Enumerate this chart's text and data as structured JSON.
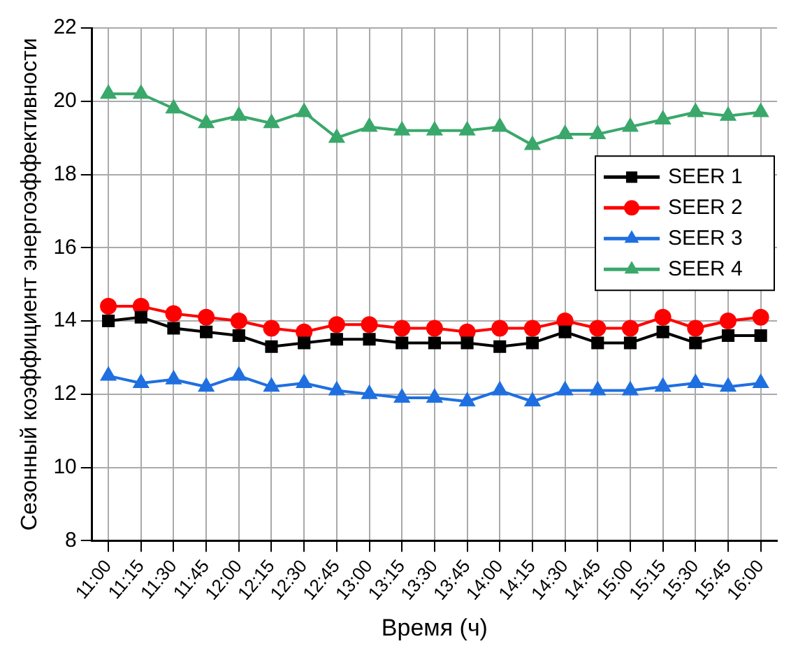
{
  "chart_data": {
    "type": "line",
    "xlabel": "Время (ч)",
    "ylabel": "Сезонный коэффициент энергоэффективности",
    "categories": [
      "11:00",
      "11:15",
      "11:30",
      "11:45",
      "12:00",
      "12:15",
      "12:30",
      "12:45",
      "13:00",
      "13:15",
      "13:30",
      "13:45",
      "14:00",
      "14:15",
      "14:30",
      "14:45",
      "15:00",
      "15:15",
      "15:30",
      "15:45",
      "16:00"
    ],
    "series": [
      {
        "name": "SEER 1",
        "color": "#000000",
        "marker": "square",
        "values": [
          14.0,
          14.1,
          13.8,
          13.7,
          13.6,
          13.3,
          13.4,
          13.5,
          13.5,
          13.4,
          13.4,
          13.4,
          13.3,
          13.4,
          13.7,
          13.4,
          13.4,
          13.7,
          13.4,
          13.6,
          13.6
        ]
      },
      {
        "name": "SEER 2",
        "color": "#ff0000",
        "marker": "circle",
        "values": [
          14.4,
          14.4,
          14.2,
          14.1,
          14.0,
          13.8,
          13.7,
          13.9,
          13.9,
          13.8,
          13.8,
          13.7,
          13.8,
          13.8,
          14.0,
          13.8,
          13.8,
          14.1,
          13.8,
          14.0,
          14.1
        ]
      },
      {
        "name": "SEER 3",
        "color": "#1f6fe0",
        "marker": "triangle",
        "values": [
          12.5,
          12.3,
          12.4,
          12.2,
          12.5,
          12.2,
          12.3,
          12.1,
          12.0,
          11.9,
          11.9,
          11.8,
          12.1,
          11.8,
          12.1,
          12.1,
          12.1,
          12.2,
          12.3,
          12.2,
          12.3
        ]
      },
      {
        "name": "SEER 4",
        "color": "#3aa86b",
        "marker": "triangle",
        "values": [
          20.2,
          20.2,
          19.8,
          19.4,
          19.6,
          19.4,
          19.7,
          19.0,
          19.3,
          19.2,
          19.2,
          19.2,
          19.3,
          18.8,
          19.1,
          19.1,
          19.3,
          19.5,
          19.7,
          19.6,
          19.7
        ]
      }
    ],
    "ylim": [
      8,
      22
    ],
    "yticks": [
      8,
      10,
      12,
      14,
      16,
      18,
      20,
      22
    ],
    "grid": true,
    "legend": "right",
    "line_style": "solid"
  }
}
